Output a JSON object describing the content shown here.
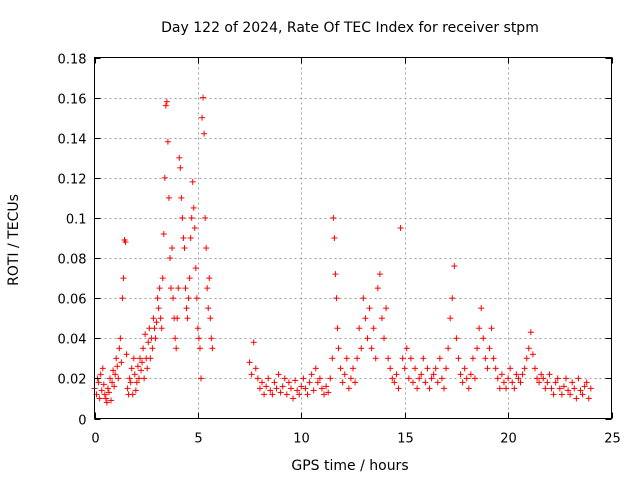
{
  "chart_data": {
    "type": "scatter",
    "title": "Day 122 of 2024, Rate Of TEC Index for receiver stpm",
    "xlabel": "GPS time / hours",
    "ylabel": "ROTI / TECUs",
    "xlim": [
      0,
      25
    ],
    "ylim": [
      0,
      0.18
    ],
    "xticks": [
      0,
      5,
      10,
      15,
      20,
      25
    ],
    "xtick_labels": [
      "0",
      "5",
      "10",
      "15",
      "20",
      "25"
    ],
    "yticks": [
      0,
      0.02,
      0.04,
      0.06,
      0.08,
      0.1,
      0.12,
      0.14,
      0.16,
      0.18
    ],
    "ytick_labels": [
      "0",
      "0.02",
      "0.04",
      "0.06",
      "0.08",
      "0.1",
      "0.12",
      "0.14",
      "0.16",
      "0.18"
    ],
    "grid": true,
    "marker": "+",
    "color": "#ff0000",
    "series": [
      {
        "name": "ROTI",
        "points": [
          [
            0.0,
            0.015
          ],
          [
            0.1,
            0.012
          ],
          [
            0.15,
            0.02
          ],
          [
            0.2,
            0.018
          ],
          [
            0.25,
            0.01
          ],
          [
            0.3,
            0.022
          ],
          [
            0.35,
            0.014
          ],
          [
            0.4,
            0.025
          ],
          [
            0.45,
            0.017
          ],
          [
            0.5,
            0.012
          ],
          [
            0.55,
            0.01
          ],
          [
            0.6,
            0.008
          ],
          [
            0.65,
            0.015
          ],
          [
            0.7,
            0.013
          ],
          [
            0.75,
            0.02
          ],
          [
            0.8,
            0.009
          ],
          [
            0.85,
            0.018
          ],
          [
            0.9,
            0.024
          ],
          [
            0.95,
            0.016
          ],
          [
            1.0,
            0.022
          ],
          [
            1.05,
            0.03
          ],
          [
            1.1,
            0.026
          ],
          [
            1.15,
            0.02
          ],
          [
            1.2,
            0.035
          ],
          [
            1.25,
            0.04
          ],
          [
            1.3,
            0.028
          ],
          [
            1.35,
            0.06
          ],
          [
            1.4,
            0.07
          ],
          [
            1.45,
            0.089
          ],
          [
            1.5,
            0.088
          ],
          [
            1.55,
            0.032
          ],
          [
            1.6,
            0.015
          ],
          [
            1.65,
            0.012
          ],
          [
            1.7,
            0.02
          ],
          [
            1.75,
            0.018
          ],
          [
            1.8,
            0.025
          ],
          [
            1.85,
            0.012
          ],
          [
            1.9,
            0.03
          ],
          [
            1.95,
            0.022
          ],
          [
            2.0,
            0.014
          ],
          [
            2.05,
            0.018
          ],
          [
            2.1,
            0.026
          ],
          [
            2.15,
            0.02
          ],
          [
            2.2,
            0.03
          ],
          [
            2.25,
            0.024
          ],
          [
            2.3,
            0.028
          ],
          [
            2.35,
            0.035
          ],
          [
            2.4,
            0.02
          ],
          [
            2.45,
            0.042
          ],
          [
            2.5,
            0.03
          ],
          [
            2.55,
            0.025
          ],
          [
            2.6,
            0.038
          ],
          [
            2.65,
            0.045
          ],
          [
            2.7,
            0.03
          ],
          [
            2.75,
            0.04
          ],
          [
            2.8,
            0.035
          ],
          [
            2.85,
            0.05
          ],
          [
            2.9,
            0.045
          ],
          [
            2.95,
            0.04
          ],
          [
            3.0,
            0.048
          ],
          [
            3.05,
            0.06
          ],
          [
            3.1,
            0.055
          ],
          [
            3.15,
            0.065
          ],
          [
            3.2,
            0.05
          ],
          [
            3.25,
            0.045
          ],
          [
            3.3,
            0.07
          ],
          [
            3.35,
            0.092
          ],
          [
            3.4,
            0.12
          ],
          [
            3.45,
            0.156
          ],
          [
            3.5,
            0.158
          ],
          [
            3.55,
            0.138
          ],
          [
            3.6,
            0.11
          ],
          [
            3.65,
            0.08
          ],
          [
            3.7,
            0.065
          ],
          [
            3.75,
            0.085
          ],
          [
            3.8,
            0.06
          ],
          [
            3.85,
            0.05
          ],
          [
            3.9,
            0.04
          ],
          [
            3.95,
            0.035
          ],
          [
            4.0,
            0.05
          ],
          [
            4.05,
            0.065
          ],
          [
            4.1,
            0.13
          ],
          [
            4.15,
            0.125
          ],
          [
            4.2,
            0.11
          ],
          [
            4.25,
            0.1
          ],
          [
            4.3,
            0.09
          ],
          [
            4.35,
            0.085
          ],
          [
            4.4,
            0.065
          ],
          [
            4.45,
            0.055
          ],
          [
            4.5,
            0.05
          ],
          [
            4.55,
            0.06
          ],
          [
            4.6,
            0.07
          ],
          [
            4.65,
            0.09
          ],
          [
            4.7,
            0.1
          ],
          [
            4.75,
            0.118
          ],
          [
            4.8,
            0.105
          ],
          [
            4.85,
            0.095
          ],
          [
            4.9,
            0.075
          ],
          [
            4.95,
            0.06
          ],
          [
            5.0,
            0.045
          ],
          [
            5.05,
            0.04
          ],
          [
            5.1,
            0.035
          ],
          [
            5.15,
            0.02
          ],
          [
            5.2,
            0.15
          ],
          [
            5.25,
            0.16
          ],
          [
            5.3,
            0.142
          ],
          [
            5.35,
            0.1
          ],
          [
            5.4,
            0.085
          ],
          [
            5.45,
            0.065
          ],
          [
            5.5,
            0.055
          ],
          [
            5.55,
            0.07
          ],
          [
            5.6,
            0.05
          ],
          [
            5.65,
            0.04
          ],
          [
            5.7,
            0.035
          ],
          [
            7.5,
            0.028
          ],
          [
            7.6,
            0.022
          ],
          [
            7.7,
            0.038
          ],
          [
            7.8,
            0.025
          ],
          [
            7.9,
            0.02
          ],
          [
            8.0,
            0.015
          ],
          [
            8.1,
            0.018
          ],
          [
            8.2,
            0.012
          ],
          [
            8.3,
            0.016
          ],
          [
            8.4,
            0.02
          ],
          [
            8.5,
            0.014
          ],
          [
            8.6,
            0.012
          ],
          [
            8.7,
            0.018
          ],
          [
            8.8,
            0.015
          ],
          [
            8.9,
            0.022
          ],
          [
            9.0,
            0.013
          ],
          [
            9.1,
            0.016
          ],
          [
            9.2,
            0.02
          ],
          [
            9.3,
            0.012
          ],
          [
            9.4,
            0.018
          ],
          [
            9.5,
            0.015
          ],
          [
            9.6,
            0.01
          ],
          [
            9.7,
            0.019
          ],
          [
            9.8,
            0.014
          ],
          [
            9.9,
            0.012
          ],
          [
            10.0,
            0.016
          ],
          [
            10.1,
            0.02
          ],
          [
            10.2,
            0.015
          ],
          [
            10.3,
            0.012
          ],
          [
            10.4,
            0.018
          ],
          [
            10.5,
            0.022
          ],
          [
            10.6,
            0.014
          ],
          [
            10.7,
            0.025
          ],
          [
            10.8,
            0.018
          ],
          [
            10.9,
            0.02
          ],
          [
            11.0,
            0.015
          ],
          [
            11.1,
            0.012
          ],
          [
            11.2,
            0.016
          ],
          [
            11.3,
            0.013
          ],
          [
            11.4,
            0.02
          ],
          [
            11.5,
            0.03
          ],
          [
            11.55,
            0.1
          ],
          [
            11.6,
            0.09
          ],
          [
            11.65,
            0.072
          ],
          [
            11.7,
            0.06
          ],
          [
            11.75,
            0.045
          ],
          [
            11.8,
            0.035
          ],
          [
            11.9,
            0.025
          ],
          [
            12.0,
            0.018
          ],
          [
            12.1,
            0.022
          ],
          [
            12.2,
            0.03
          ],
          [
            12.3,
            0.015
          ],
          [
            12.4,
            0.02
          ],
          [
            12.5,
            0.025
          ],
          [
            12.6,
            0.018
          ],
          [
            12.7,
            0.03
          ],
          [
            12.8,
            0.045
          ],
          [
            12.9,
            0.035
          ],
          [
            13.0,
            0.06
          ],
          [
            13.1,
            0.05
          ],
          [
            13.2,
            0.04
          ],
          [
            13.3,
            0.055
          ],
          [
            13.4,
            0.035
          ],
          [
            13.5,
            0.045
          ],
          [
            13.6,
            0.03
          ],
          [
            13.7,
            0.065
          ],
          [
            13.8,
            0.072
          ],
          [
            13.9,
            0.05
          ],
          [
            14.0,
            0.04
          ],
          [
            14.1,
            0.055
          ],
          [
            14.2,
            0.03
          ],
          [
            14.3,
            0.025
          ],
          [
            14.4,
            0.02
          ],
          [
            14.5,
            0.018
          ],
          [
            14.6,
            0.022
          ],
          [
            14.7,
            0.015
          ],
          [
            14.8,
            0.095
          ],
          [
            14.9,
            0.03
          ],
          [
            15.0,
            0.025
          ],
          [
            15.1,
            0.035
          ],
          [
            15.2,
            0.02
          ],
          [
            15.3,
            0.03
          ],
          [
            15.4,
            0.018
          ],
          [
            15.5,
            0.025
          ],
          [
            15.6,
            0.015
          ],
          [
            15.7,
            0.02
          ],
          [
            15.8,
            0.022
          ],
          [
            15.9,
            0.03
          ],
          [
            16.0,
            0.018
          ],
          [
            16.1,
            0.025
          ],
          [
            16.2,
            0.015
          ],
          [
            16.3,
            0.02
          ],
          [
            16.4,
            0.022
          ],
          [
            16.5,
            0.025
          ],
          [
            16.6,
            0.018
          ],
          [
            16.7,
            0.03
          ],
          [
            16.8,
            0.02
          ],
          [
            16.9,
            0.015
          ],
          [
            17.0,
            0.025
          ],
          [
            17.1,
            0.035
          ],
          [
            17.2,
            0.05
          ],
          [
            17.3,
            0.06
          ],
          [
            17.4,
            0.076
          ],
          [
            17.5,
            0.04
          ],
          [
            17.6,
            0.03
          ],
          [
            17.7,
            0.022
          ],
          [
            17.8,
            0.018
          ],
          [
            17.9,
            0.025
          ],
          [
            18.0,
            0.02
          ],
          [
            18.1,
            0.015
          ],
          [
            18.2,
            0.022
          ],
          [
            18.3,
            0.03
          ],
          [
            18.4,
            0.02
          ],
          [
            18.5,
            0.035
          ],
          [
            18.6,
            0.045
          ],
          [
            18.7,
            0.055
          ],
          [
            18.8,
            0.04
          ],
          [
            18.9,
            0.03
          ],
          [
            19.0,
            0.025
          ],
          [
            19.1,
            0.035
          ],
          [
            19.2,
            0.045
          ],
          [
            19.3,
            0.03
          ],
          [
            19.4,
            0.025
          ],
          [
            19.5,
            0.02
          ],
          [
            19.6,
            0.015
          ],
          [
            19.7,
            0.022
          ],
          [
            19.8,
            0.018
          ],
          [
            19.9,
            0.015
          ],
          [
            20.0,
            0.02
          ],
          [
            20.1,
            0.025
          ],
          [
            20.2,
            0.018
          ],
          [
            20.3,
            0.015
          ],
          [
            20.4,
            0.022
          ],
          [
            20.5,
            0.02
          ],
          [
            20.6,
            0.018
          ],
          [
            20.7,
            0.022
          ],
          [
            20.8,
            0.025
          ],
          [
            20.9,
            0.03
          ],
          [
            21.0,
            0.035
          ],
          [
            21.1,
            0.043
          ],
          [
            21.2,
            0.032
          ],
          [
            21.3,
            0.025
          ],
          [
            21.4,
            0.02
          ],
          [
            21.5,
            0.018
          ],
          [
            21.6,
            0.022
          ],
          [
            21.7,
            0.02
          ],
          [
            21.8,
            0.015
          ],
          [
            21.9,
            0.018
          ],
          [
            22.0,
            0.022
          ],
          [
            22.1,
            0.015
          ],
          [
            22.2,
            0.012
          ],
          [
            22.3,
            0.018
          ],
          [
            22.4,
            0.02
          ],
          [
            22.5,
            0.015
          ],
          [
            22.6,
            0.012
          ],
          [
            22.7,
            0.016
          ],
          [
            22.8,
            0.02
          ],
          [
            22.9,
            0.014
          ],
          [
            23.0,
            0.012
          ],
          [
            23.1,
            0.018
          ],
          [
            23.2,
            0.015
          ],
          [
            23.3,
            0.01
          ],
          [
            23.4,
            0.02
          ],
          [
            23.5,
            0.014
          ],
          [
            23.6,
            0.012
          ],
          [
            23.7,
            0.016
          ],
          [
            23.8,
            0.018
          ],
          [
            23.9,
            0.01
          ],
          [
            24.0,
            0.015
          ]
        ]
      }
    ]
  }
}
